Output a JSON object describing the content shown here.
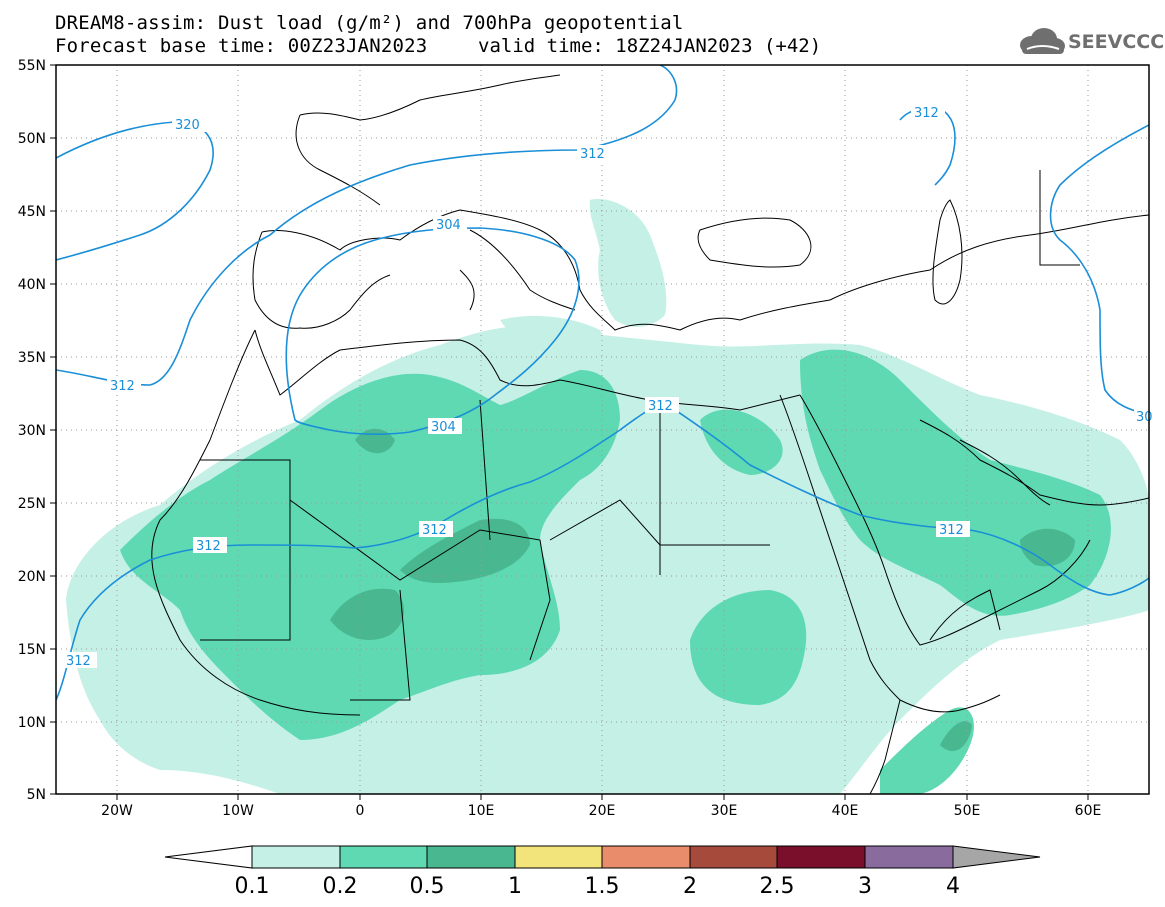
{
  "title": {
    "line1": "DREAM8-assim: Dust load (g/m²) and 700hPa geopotential",
    "line2": "Forecast base time: 00Z23JAN2023",
    "valid": "valid time: 18Z24JAN2023 (+42)"
  },
  "logo": {
    "text": "SEEVCCC",
    "icon": "cloud-icon"
  },
  "axes": {
    "lon_labels": [
      "20W",
      "10W",
      "0",
      "10E",
      "20E",
      "30E",
      "40E",
      "50E",
      "60E"
    ],
    "lat_labels": [
      "55N",
      "50N",
      "45N",
      "40N",
      "35N",
      "30N",
      "25N",
      "20N",
      "15N",
      "10N",
      "5N"
    ],
    "lon_range": [
      -25,
      65
    ],
    "lat_range": [
      5,
      55
    ]
  },
  "contours": {
    "color": "#1a8fd8",
    "labels": [
      "320",
      "312",
      "304",
      "312",
      "312",
      "312",
      "312",
      "312",
      "312",
      "312",
      "304",
      "312",
      "30"
    ]
  },
  "colorbar": {
    "ticks": [
      "0.1",
      "0.2",
      "0.5",
      "1",
      "1.5",
      "2",
      "2.5",
      "3",
      "4"
    ],
    "colors": [
      "#ffffff",
      "#c5f0e6",
      "#5ed9b2",
      "#49b891",
      "#f2e47a",
      "#e88c6b",
      "#a64a3b",
      "#7a0f2b",
      "#8a6b9e",
      "#a6a6a6"
    ]
  },
  "dust_colors": {
    "low": "#c5f0e6",
    "mid": "#5ed9b2",
    "high": "#49b891"
  }
}
